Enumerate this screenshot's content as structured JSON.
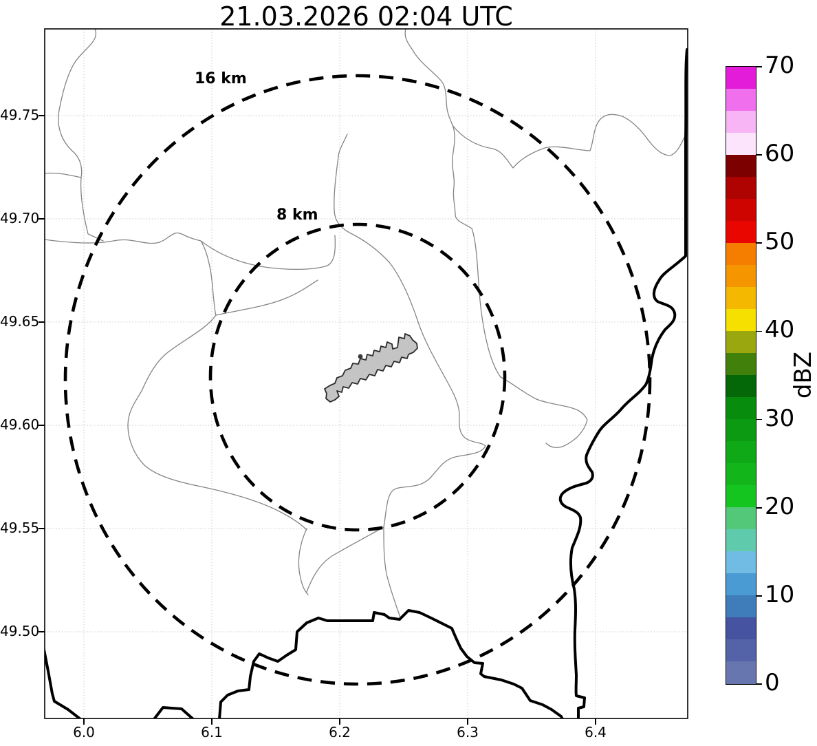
{
  "title": "21.03.2026 02:04 UTC",
  "axes": {
    "x_ticks": [
      "6.0",
      "6.1",
      "6.2",
      "6.3",
      "6.4"
    ],
    "y_ticks": [
      "49.75",
      "49.70",
      "49.65",
      "49.60",
      "49.55",
      "49.50"
    ]
  },
  "range_rings": {
    "outer_label": "16 km",
    "inner_label": "8 km"
  },
  "colorbar": {
    "label": "dBZ",
    "ticks": [
      "0",
      "10",
      "20",
      "30",
      "40",
      "50",
      "60",
      "70"
    ],
    "vmin": 0,
    "vmax": 70,
    "band_step": 2.5,
    "band_colors_bottom_to_top": [
      "#6776af",
      "#5463a8",
      "#4553a0",
      "#3e7cba",
      "#4a9ad4",
      "#70bce4",
      "#5fcbac",
      "#52c878",
      "#14c41f",
      "#12b61b",
      "#0fa817",
      "#0c9a13",
      "#088c0e",
      "#046808",
      "#42800c",
      "#9aa70e",
      "#f5e000",
      "#f5b800",
      "#f59600",
      "#f57d00",
      "#e90500",
      "#cd0400",
      "#ae0300",
      "#7d0000",
      "#fce4fc",
      "#f8b5f6",
      "#ef6fed",
      "#e21cd9"
    ]
  },
  "chart_data": {
    "type": "map",
    "title": "21.03.2026 02:04 UTC",
    "projection": "lon/lat (degrees)",
    "xlim": [
      5.97,
      6.47
    ],
    "ylim": [
      49.46,
      49.79
    ],
    "x_tick_values": [
      6.0,
      6.1,
      6.2,
      6.3,
      6.4
    ],
    "y_tick_values": [
      49.75,
      49.7,
      49.65,
      49.6,
      49.55,
      49.5
    ],
    "range_rings_km": [
      8,
      16
    ],
    "ring_center_lon_lat": [
      6.2,
      49.623
    ],
    "radar_echoes": "none visible (map is echo-free)",
    "colorbar": {
      "label": "dBZ",
      "range": [
        0,
        70
      ],
      "tick_values": [
        0,
        10,
        20,
        30,
        40,
        50,
        60,
        70
      ],
      "discrete_band_width_dbz": 2.5
    },
    "map_features": [
      "thin gray administrative boundaries",
      "thick black national border / river lines (right and bottom)",
      "gray filled city polygon at ring center",
      "dotted lat/lon graticule"
    ],
    "grid": true
  }
}
